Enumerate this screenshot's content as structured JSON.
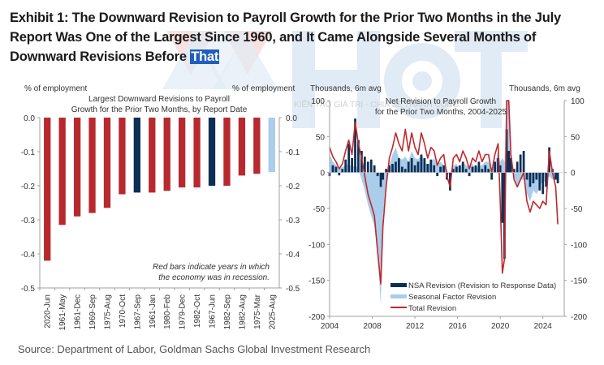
{
  "exhibit": {
    "title_main": "Exhibit 1: The Downward Revision to Payroll Growth for the Prior Two Months in the July Report Was One of the Largest Since 1960, and It Came Alongside Several Months of Downward Revisions Before ",
    "title_highlight": "That",
    "source": "Source: Department of Labor, Goldman Sachs Global Investment Research"
  },
  "watermark": {
    "logo_text": "HCT",
    "tagline": "KIẾN TẠO GIÁ TRỊ - CHIA SẺ THÀNH CÔNG"
  },
  "colors": {
    "recession_red": "#b7292e",
    "non_recession_navy": "#0e2f55",
    "latest_lightblue": "#a9cdeb",
    "nsa_navy": "#0e2f55",
    "seasonal_lightblue": "#a9cdeb",
    "total_red": "#c0282d",
    "axis_gray": "#a0a0a0",
    "text_gray": "#333333"
  },
  "chart_data": [
    {
      "type": "bar",
      "title": "Largest Downward Revisions to Payroll Growth for the Prior Two Months, by Report Date",
      "ylabel_left": "% of employment",
      "ylabel_right": "% of employment",
      "xlabel": "",
      "ylim": [
        -0.5,
        0.0
      ],
      "yticks": [
        "0.0",
        "-0.1",
        "-0.2",
        "-0.3",
        "-0.4",
        "-0.5"
      ],
      "ytick_values": [
        0.0,
        -0.1,
        -0.2,
        -0.3,
        -0.4,
        -0.5
      ],
      "grid": false,
      "categories": [
        "2020-Jun",
        "1961-May",
        "1961-Dec",
        "1969-Sep",
        "1975-Aug",
        "1970-Oct",
        "1967-Sep",
        "1961-Jan",
        "1980-Feb",
        "1979-Dec",
        "1982-Oct",
        "1967-Jun",
        "1982-Sep",
        "1982-Aug",
        "1975-Mar",
        "2025-Aug"
      ],
      "values": [
        -0.42,
        -0.315,
        -0.29,
        -0.28,
        -0.265,
        -0.225,
        -0.22,
        -0.22,
        -0.215,
        -0.205,
        -0.205,
        -0.2,
        -0.2,
        -0.17,
        -0.165,
        -0.16
      ],
      "bar_type": [
        "recession",
        "recession",
        "recession",
        "recession",
        "recession",
        "recession",
        "non-recession",
        "recession",
        "recession",
        "recession",
        "recession",
        "non-recession",
        "recession",
        "recession",
        "recession",
        "latest"
      ],
      "annotation": [
        "Red bars indicate years in which",
        "the economy was in recession."
      ]
    },
    {
      "type": "area",
      "title": "Net Revision to Payroll Growth for the Prior Two Months, 2004-2025",
      "ylabel_left": "Thousands, 6m avg",
      "ylabel_right": "Thousands, 6m avg",
      "xlabel": "",
      "xlim": [
        2004,
        2026
      ],
      "ylim": [
        -200,
        100
      ],
      "xticks": [
        "2004",
        "2008",
        "2012",
        "2016",
        "2020",
        "2024"
      ],
      "xtick_values": [
        2004,
        2008,
        2012,
        2016,
        2020,
        2024
      ],
      "yticks": [
        "100",
        "50",
        "0",
        "-50",
        "-100",
        "-150",
        "-200"
      ],
      "ytick_values": [
        100,
        50,
        0,
        -50,
        -100,
        -150,
        -200
      ],
      "grid": false,
      "legend": {
        "placement": "bottom-center",
        "entries": [
          "NSA Revision (Revision to Response Data)",
          "Seasonal Factor Revision",
          "Total Revision"
        ]
      },
      "x": [
        2004.0,
        2004.3,
        2004.6,
        2004.9,
        2005.2,
        2005.5,
        2005.8,
        2006.1,
        2006.4,
        2006.7,
        2007.0,
        2007.3,
        2007.6,
        2007.9,
        2008.2,
        2008.5,
        2008.8,
        2009.0,
        2009.3,
        2009.6,
        2009.9,
        2010.2,
        2010.5,
        2010.8,
        2011.1,
        2011.4,
        2011.7,
        2012.0,
        2012.3,
        2012.6,
        2012.9,
        2013.2,
        2013.5,
        2013.8,
        2014.1,
        2014.4,
        2014.7,
        2015.0,
        2015.3,
        2015.6,
        2015.9,
        2016.2,
        2016.5,
        2016.8,
        2017.1,
        2017.4,
        2017.7,
        2018.0,
        2018.3,
        2018.6,
        2018.9,
        2019.2,
        2019.5,
        2019.8,
        2020.0,
        2020.2,
        2020.4,
        2020.6,
        2020.8,
        2021.0,
        2021.3,
        2021.6,
        2021.9,
        2022.2,
        2022.5,
        2022.8,
        2023.1,
        2023.4,
        2023.7,
        2024.0,
        2024.3,
        2024.6,
        2024.9,
        2025.2,
        2025.4
      ],
      "series": [
        {
          "name": "NSA Revision (Revision to Response Data)",
          "kind": "bar",
          "values": [
            -5,
            10,
            8,
            -4,
            5,
            18,
            40,
            20,
            75,
            45,
            30,
            22,
            15,
            18,
            10,
            -5,
            -20,
            -10,
            5,
            10,
            12,
            15,
            20,
            8,
            5,
            15,
            20,
            10,
            15,
            25,
            20,
            12,
            18,
            10,
            -5,
            8,
            10,
            -10,
            -25,
            5,
            8,
            10,
            15,
            5,
            -5,
            8,
            10,
            15,
            5,
            10,
            5,
            -10,
            15,
            20,
            10,
            -70,
            -120,
            60,
            30,
            20,
            5,
            15,
            25,
            30,
            -10,
            -20,
            -15,
            -10,
            -25,
            -30,
            -20,
            35,
            5,
            -10,
            -15
          ],
          "color": "#0e2f55"
        },
        {
          "name": "Seasonal Factor Revision",
          "kind": "area",
          "values": [
            25,
            15,
            10,
            5,
            8,
            10,
            12,
            8,
            10,
            5,
            -10,
            -25,
            -45,
            -60,
            -75,
            -110,
            -185,
            -60,
            -15,
            10,
            25,
            35,
            20,
            18,
            22,
            15,
            30,
            20,
            18,
            25,
            15,
            10,
            15,
            20,
            10,
            15,
            10,
            5,
            -10,
            10,
            12,
            5,
            15,
            10,
            8,
            12,
            5,
            10,
            10,
            15,
            15,
            5,
            10,
            30,
            15,
            20,
            15,
            100,
            100,
            10,
            -5,
            -20,
            -10,
            -10,
            -30,
            -40,
            -25,
            -30,
            -20,
            -10,
            -15,
            -5,
            -10,
            -5,
            -10
          ],
          "color": "#a9cdeb"
        },
        {
          "name": "Total Revision",
          "kind": "line",
          "values": [
            35,
            22,
            15,
            5,
            12,
            30,
            45,
            25,
            70,
            40,
            20,
            -5,
            -30,
            -45,
            -60,
            -110,
            -155,
            -75,
            -20,
            20,
            35,
            55,
            40,
            30,
            60,
            30,
            55,
            35,
            25,
            55,
            40,
            20,
            35,
            30,
            10,
            20,
            25,
            -5,
            -20,
            20,
            25,
            15,
            30,
            20,
            5,
            20,
            15,
            30,
            15,
            25,
            25,
            0,
            25,
            40,
            -40,
            -140,
            -120,
            100,
            100,
            25,
            -10,
            -20,
            -10,
            0,
            -40,
            -55,
            -40,
            -45,
            -50,
            -40,
            -45,
            30,
            0,
            -20,
            -72
          ],
          "color": "#c0282d"
        }
      ]
    }
  ]
}
